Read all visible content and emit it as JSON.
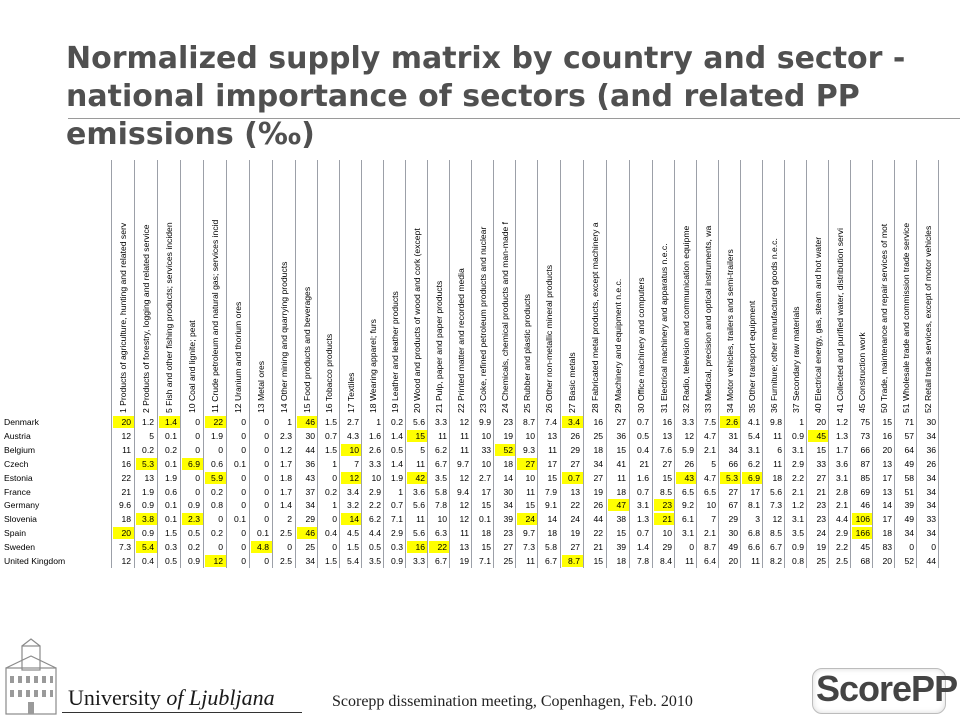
{
  "title": "Normalized supply matrix by country and sector - national importance of sectors (and related PP emissions (‰)",
  "table": {
    "columns": [
      "1 Products of agriculture, hunting and related serv",
      "2 Products of forestry, logging and related service",
      "5 Fish and other fishing products; services inciden",
      "10 Coal and lignite; peat",
      "11 Crude petroleum and natural gas; services incid",
      "12 Uranium and thorium ores",
      "13 Metal ores",
      "14 Other mining and quarrying products",
      "15 Food products and beverages",
      "16 Tobacco products",
      "17 Textiles",
      "18 Wearing apparel; furs",
      "19 Leather and leather products",
      "20 Wood and products of wood and cork (except",
      "21 Pulp, paper and paper products",
      "22 Printed matter and recorded media",
      "23 Coke, refined petroleum products and nuclear",
      "24 Chemicals, chemical products and man-made f",
      "25 Rubber and plastic products",
      "26 Other non-metallic mineral products",
      "27 Basic metals",
      "28 Fabricated metal products, except machinery a",
      "29 Machinery and equipment n.e.c.",
      "30 Office machinery and computers",
      "31 Electrical machinery and apparatus n.e.c.",
      "32 Radio, television and communication equipme",
      "33 Medical, precision and optical instruments, wa",
      "34 Motor vehicles, trailers and semi-trailers",
      "35 Other transport equipment",
      "36 Furniture; other manufactured goods n.e.c.",
      "37 Secondary raw materials",
      "40 Electrical energy, gas, steam and hot water",
      "41 Collected and purified water, distribution servi",
      "45 Construction work",
      "50 Trade, maintenance and repair services of mot",
      "51 Wholesale trade and commission trade service",
      "52 Retail trade services, except of motor vehicles"
    ],
    "rows": [
      {
        "country": "Denmark",
        "values": [
          "20",
          "1.2",
          "1.4",
          "0",
          "22",
          "0",
          "0",
          "1",
          "46",
          "1.5",
          "2.7",
          "1",
          "0.2",
          "5.6",
          "3.3",
          "12",
          "9.9",
          "23",
          "8.7",
          "7.4",
          "3.4",
          "16",
          "27",
          "0.7",
          "16",
          "3.3",
          "7.5",
          "2.6",
          "4.1",
          "9.8",
          "1",
          "20",
          "1.2",
          "75",
          "15",
          "71",
          "30"
        ],
        "highlight": [
          0,
          2,
          4,
          8,
          20,
          27
        ]
      },
      {
        "country": "Austria",
        "values": [
          "12",
          "5",
          "0.1",
          "0",
          "1.9",
          "0",
          "0",
          "2.3",
          "30",
          "0.7",
          "4.3",
          "1.6",
          "1.4",
          "15",
          "11",
          "11",
          "10",
          "19",
          "10",
          "13",
          "26",
          "25",
          "36",
          "0.5",
          "13",
          "12",
          "4.7",
          "31",
          "5.4",
          "11",
          "0.9",
          "45",
          "1.3",
          "73",
          "16",
          "57",
          "34"
        ],
        "highlight": [
          13,
          31
        ]
      },
      {
        "country": "Belgium",
        "values": [
          "11",
          "0.2",
          "0.2",
          "0",
          "0",
          "0",
          "0",
          "1.2",
          "44",
          "1.5",
          "10",
          "2.6",
          "0.5",
          "5",
          "6.2",
          "11",
          "33",
          "52",
          "9.3",
          "11",
          "29",
          "18",
          "15",
          "0.4",
          "7.6",
          "5.9",
          "2.1",
          "34",
          "3.1",
          "6",
          "3.1",
          "15",
          "1.7",
          "66",
          "20",
          "64",
          "36"
        ],
        "highlight": [
          10,
          17
        ]
      },
      {
        "country": "Czech",
        "values": [
          "16",
          "5.3",
          "0.1",
          "6.9",
          "0.6",
          "0.1",
          "0",
          "1.7",
          "36",
          "1",
          "7",
          "3.3",
          "1.4",
          "11",
          "6.7",
          "9.7",
          "10",
          "18",
          "27",
          "17",
          "27",
          "34",
          "41",
          "21",
          "27",
          "26",
          "5",
          "66",
          "6.2",
          "11",
          "2.9",
          "33",
          "3.6",
          "87",
          "13",
          "49",
          "26"
        ],
        "highlight": [
          1,
          3,
          18
        ]
      },
      {
        "country": "Estonia",
        "values": [
          "22",
          "13",
          "1.9",
          "0",
          "5.9",
          "0",
          "0",
          "1.8",
          "43",
          "0",
          "12",
          "10",
          "1.9",
          "42",
          "3.5",
          "12",
          "2.7",
          "14",
          "10",
          "15",
          "0.7",
          "27",
          "11",
          "1.6",
          "15",
          "43",
          "4.7",
          "5.3",
          "6.9",
          "18",
          "2.2",
          "27",
          "3.1",
          "85",
          "17",
          "58",
          "34"
        ],
        "highlight": [
          4,
          10,
          13,
          20,
          25,
          27,
          28
        ]
      },
      {
        "country": "France",
        "values": [
          "21",
          "1.9",
          "0.6",
          "0",
          "0.2",
          "0",
          "0",
          "1.7",
          "37",
          "0.2",
          "3.4",
          "2.9",
          "1",
          "3.6",
          "5.8",
          "9.4",
          "17",
          "30",
          "11",
          "7.9",
          "13",
          "19",
          "18",
          "0.7",
          "8.5",
          "6.5",
          "6.5",
          "27",
          "17",
          "5.6",
          "2.1",
          "21",
          "2.8",
          "69",
          "13",
          "51",
          "34"
        ],
        "highlight": []
      },
      {
        "country": "Germany",
        "values": [
          "9.6",
          "0.9",
          "0.1",
          "0.9",
          "0.8",
          "0",
          "0",
          "1.4",
          "34",
          "1",
          "3.2",
          "2.2",
          "0.7",
          "5.6",
          "7.8",
          "12",
          "15",
          "34",
          "15",
          "9.1",
          "22",
          "26",
          "47",
          "3.1",
          "23",
          "9.2",
          "10",
          "67",
          "8.1",
          "7.3",
          "1.2",
          "23",
          "2.1",
          "46",
          "14",
          "39",
          "34"
        ],
        "highlight": [
          22,
          24
        ]
      },
      {
        "country": "Slovenia",
        "values": [
          "18",
          "3.8",
          "0.1",
          "2.3",
          "0",
          "0.1",
          "0",
          "2",
          "29",
          "0",
          "14",
          "6.2",
          "7.1",
          "11",
          "10",
          "12",
          "0.1",
          "39",
          "24",
          "14",
          "24",
          "44",
          "38",
          "1.3",
          "21",
          "6.1",
          "7",
          "29",
          "3",
          "12",
          "3.1",
          "23",
          "4.4",
          "106",
          "17",
          "49",
          "33"
        ],
        "highlight": [
          1,
          3,
          10,
          18,
          24,
          33
        ]
      },
      {
        "country": "Spain",
        "values": [
          "20",
          "0.9",
          "1.5",
          "0.5",
          "0.2",
          "0",
          "0.1",
          "2.5",
          "46",
          "0.4",
          "4.5",
          "4.4",
          "2.9",
          "5.6",
          "6.3",
          "11",
          "18",
          "23",
          "9.7",
          "18",
          "19",
          "22",
          "15",
          "0.7",
          "10",
          "3.1",
          "2.1",
          "30",
          "6.8",
          "8.5",
          "3.5",
          "24",
          "2.9",
          "166",
          "18",
          "34",
          "34"
        ],
        "highlight": [
          0,
          8,
          33
        ]
      },
      {
        "country": "Sweden",
        "values": [
          "7.3",
          "5.4",
          "0.3",
          "0.2",
          "0",
          "0",
          "4.8",
          "0",
          "25",
          "0",
          "1.5",
          "0.5",
          "0.3",
          "16",
          "22",
          "13",
          "15",
          "27",
          "7.3",
          "5.8",
          "27",
          "21",
          "39",
          "1.4",
          "29",
          "0",
          "8.7",
          "49",
          "6.6",
          "6.7",
          "0.9",
          "19",
          "2.2",
          "45",
          "83",
          "0",
          "0"
        ],
        "highlight": [
          1,
          6,
          13,
          14
        ]
      },
      {
        "country": "United Kingdom",
        "values": [
          "12",
          "0.4",
          "0.5",
          "0.9",
          "12",
          "0",
          "0",
          "2.5",
          "34",
          "1.5",
          "5.4",
          "3.5",
          "0.9",
          "3.3",
          "6.7",
          "19",
          "7.1",
          "25",
          "11",
          "6.7",
          "8.7",
          "15",
          "18",
          "7.8",
          "8.4",
          "11",
          "6.4",
          "20",
          "11",
          "8.2",
          "0.8",
          "25",
          "2.5",
          "68",
          "20",
          "52",
          "44"
        ],
        "highlight": [
          4,
          20
        ]
      }
    ]
  },
  "footer": {
    "university_prefix": "University ",
    "university_suffix": "of Ljubljana",
    "meeting": "Scorepp dissemination meeting, Copenhagen, Feb. 2010",
    "logo_text": "ScorePP"
  }
}
